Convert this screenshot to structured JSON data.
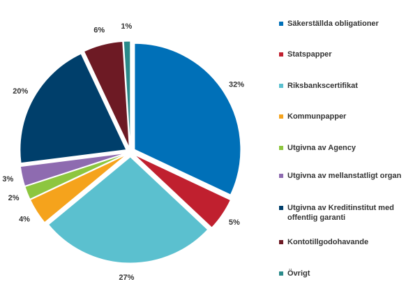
{
  "chart_data": {
    "type": "pie",
    "categories": [
      "Säkerställda obligationer",
      "Statspapper",
      "Riksbankscertifikat",
      "Kommunpapper",
      "Utgivna av Agency",
      "Utgivna av mellanstatligt organ",
      "Utgivna av Kreditinstitut med offentlig garanti",
      "Kontotillgodohavande",
      "Övrigt"
    ],
    "values": [
      32,
      5,
      27,
      4,
      2,
      3,
      20,
      6,
      1
    ],
    "value_labels": [
      "32%",
      "5%",
      "27%",
      "4%",
      "2%",
      "3%",
      "20%",
      "6%",
      "1%"
    ],
    "colors": [
      "#0070b8",
      "#c0202f",
      "#5bc0cf",
      "#f5a31c",
      "#8dc63f",
      "#8e6bb0",
      "#003f6b",
      "#6d1a24",
      "#2a8a8a"
    ],
    "legend": "right"
  }
}
